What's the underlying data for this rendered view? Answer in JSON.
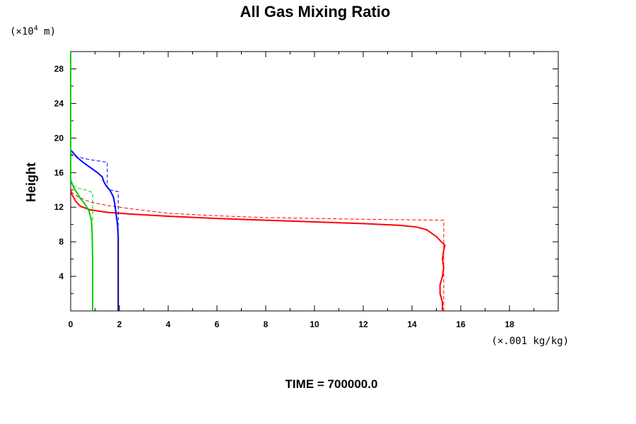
{
  "chart_data": {
    "type": "line",
    "title": "All Gas Mixing Ratio",
    "ylabel": "Height",
    "y_unit_base": "(×10",
    "y_unit_exp": "4",
    "y_unit_tail": " m)",
    "x_unit": "(×.001 kg/kg)",
    "footer": "TIME = 700000.0",
    "xlim": [
      0,
      20
    ],
    "ylim": [
      0,
      30
    ],
    "x_ticks": [
      0,
      2,
      4,
      6,
      8,
      10,
      12,
      14,
      16,
      18
    ],
    "y_ticks": [
      4,
      8,
      12,
      16,
      20,
      24,
      28
    ],
    "grid": false,
    "series": [
      {
        "color": "#ff0000",
        "style": "solid",
        "points": [
          [
            15.25,
            0
          ],
          [
            15.25,
            1
          ],
          [
            15.15,
            2
          ],
          [
            15.15,
            3
          ],
          [
            15.25,
            4
          ],
          [
            15.3,
            5
          ],
          [
            15.25,
            6
          ],
          [
            15.3,
            7
          ],
          [
            15.35,
            7.6
          ],
          [
            15.2,
            8
          ],
          [
            15.0,
            8.6
          ],
          [
            14.8,
            9.0
          ],
          [
            14.6,
            9.4
          ],
          [
            14.2,
            9.7
          ],
          [
            13.5,
            9.9
          ],
          [
            12,
            10.1
          ],
          [
            10,
            10.3
          ],
          [
            8,
            10.5
          ],
          [
            6,
            10.7
          ],
          [
            4,
            10.95
          ],
          [
            2.5,
            11.2
          ],
          [
            1.5,
            11.4
          ],
          [
            0.8,
            11.7
          ],
          [
            0.4,
            12.1
          ],
          [
            0.2,
            12.7
          ],
          [
            0.05,
            13.5
          ],
          [
            0,
            14
          ]
        ]
      },
      {
        "color": "#ff0000",
        "style": "dashed",
        "points": [
          [
            15.3,
            0
          ],
          [
            15.3,
            10.5
          ],
          [
            12,
            10.6
          ],
          [
            8,
            10.8
          ],
          [
            6,
            11.0
          ],
          [
            4,
            11.3
          ],
          [
            2.5,
            11.8
          ],
          [
            1.5,
            12.2
          ],
          [
            0.8,
            12.6
          ],
          [
            0.3,
            13.2
          ],
          [
            0,
            13.8
          ]
        ]
      },
      {
        "color": "#0000ff",
        "style": "solid",
        "points": [
          [
            1.95,
            8.6
          ],
          [
            1.92,
            10
          ],
          [
            1.85,
            11.5
          ],
          [
            1.8,
            12.5
          ],
          [
            1.75,
            13.2
          ],
          [
            1.6,
            14.0
          ],
          [
            1.45,
            14.5
          ],
          [
            1.35,
            15.0
          ],
          [
            1.3,
            15.5
          ],
          [
            1.1,
            16.0
          ],
          [
            0.8,
            16.6
          ],
          [
            0.5,
            17.2
          ],
          [
            0.25,
            17.8
          ],
          [
            0.1,
            18.3
          ],
          [
            0,
            18.6
          ]
        ]
      },
      {
        "color": "#0000ff",
        "style": "dashed",
        "points": [
          [
            1.95,
            0
          ],
          [
            1.95,
            13.8
          ],
          [
            1.6,
            14.0
          ],
          [
            1.5,
            14.2
          ],
          [
            1.5,
            17.2
          ],
          [
            1.0,
            17.4
          ],
          [
            0.6,
            17.6
          ],
          [
            0.3,
            17.8
          ],
          [
            0.1,
            18.0
          ],
          [
            0,
            18.2
          ]
        ]
      },
      {
        "color": "#00cc00",
        "style": "solid",
        "points": [
          [
            0.9,
            0
          ],
          [
            0.9,
            6
          ],
          [
            0.88,
            9
          ],
          [
            0.85,
            10.5
          ],
          [
            0.75,
            11.6
          ],
          [
            0.55,
            12.5
          ],
          [
            0.4,
            13.0
          ],
          [
            0.25,
            13.7
          ],
          [
            0.12,
            14.3
          ],
          [
            0.05,
            14.8
          ],
          [
            0,
            15.2
          ]
        ]
      },
      {
        "color": "#00cc00",
        "style": "dashed",
        "points": [
          [
            0.9,
            10.5
          ],
          [
            0.9,
            13.7
          ],
          [
            0.6,
            14.0
          ],
          [
            0.3,
            14.2
          ],
          [
            0.1,
            14.5
          ],
          [
            0,
            14.8
          ]
        ]
      },
      {
        "color": "#00cc00",
        "style": "solid",
        "points": [
          [
            0,
            15.2
          ],
          [
            0,
            30
          ]
        ]
      },
      {
        "color": "#00008b",
        "style": "solid",
        "points": [
          [
            1.95,
            0
          ],
          [
            1.95,
            8.6
          ]
        ]
      }
    ]
  }
}
